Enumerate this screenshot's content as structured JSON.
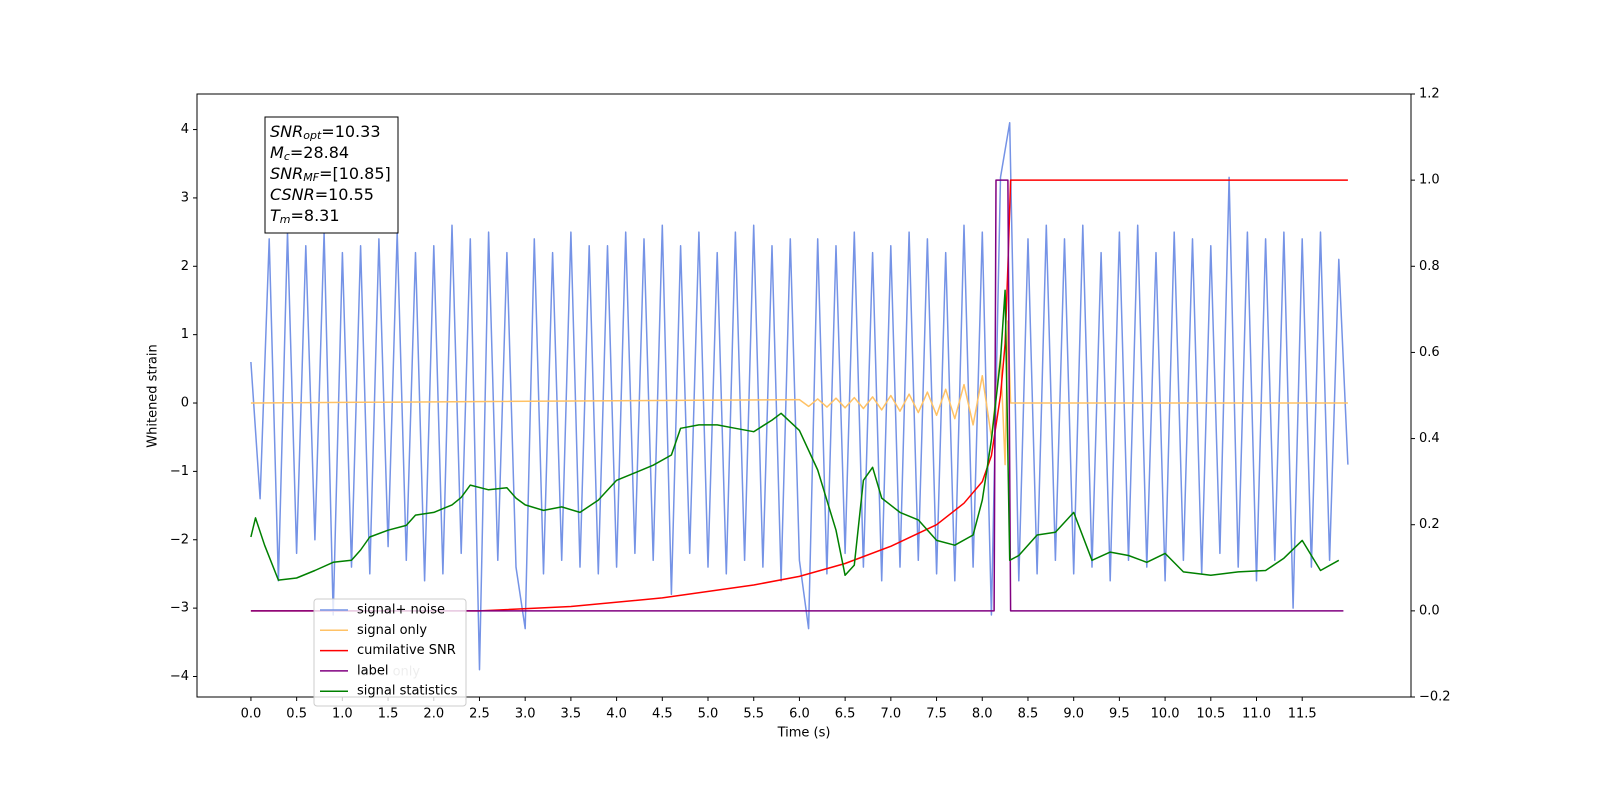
{
  "chart_data": {
    "type": "line",
    "xlabel": "Time (s)",
    "ylabel": "Whitened strain",
    "xlim": [
      -0.59,
      12.69
    ],
    "ylim": [
      -4.3,
      4.52
    ],
    "y2lim": [
      -0.2,
      1.2
    ],
    "xticks": [
      {
        "value": 0,
        "label": "0.0"
      },
      {
        "value": 0.5,
        "label": "0.5"
      },
      {
        "value": 1,
        "label": "1.0"
      },
      {
        "value": 1.5,
        "label": "1.5"
      },
      {
        "value": 2,
        "label": "2.0"
      },
      {
        "value": 2.5,
        "label": "2.5"
      },
      {
        "value": 3,
        "label": "3.0"
      },
      {
        "value": 3.5,
        "label": "3.5"
      },
      {
        "value": 4,
        "label": "4.0"
      },
      {
        "value": 4.5,
        "label": "4.5"
      },
      {
        "value": 5,
        "label": "5.0"
      },
      {
        "value": 5.5,
        "label": "5.5"
      },
      {
        "value": 6,
        "label": "6.0"
      },
      {
        "value": 6.5,
        "label": "6.5"
      },
      {
        "value": 7,
        "label": "7.0"
      },
      {
        "value": 7.5,
        "label": "7.5"
      },
      {
        "value": 8,
        "label": "8.0"
      },
      {
        "value": 8.5,
        "label": "8.5"
      },
      {
        "value": 9,
        "label": "9.0"
      },
      {
        "value": 9.5,
        "label": "9.5"
      },
      {
        "value": 10,
        "label": "10.0"
      },
      {
        "value": 10.5,
        "label": "10.5"
      },
      {
        "value": 11,
        "label": "11.0"
      },
      {
        "value": 11.5,
        "label": "11.5"
      }
    ],
    "yticks": [
      {
        "value": -4,
        "label": "−4"
      },
      {
        "value": -3,
        "label": "−3"
      },
      {
        "value": -2,
        "label": "−2"
      },
      {
        "value": -1,
        "label": "−1"
      },
      0,
      1,
      2,
      3,
      4
    ],
    "y2ticks": [
      {
        "value": -0.2,
        "label": "−0.2"
      },
      {
        "value": 0,
        "label": "0.0"
      },
      0.2,
      0.4,
      0.6,
      0.8,
      {
        "value": 1,
        "label": "1.0"
      },
      1.2
    ],
    "annotation": [
      {
        "name": "SNR",
        "sub": "opt",
        "text": "=10.33"
      },
      {
        "name": "M",
        "sub": "c",
        "text": "=28.84"
      },
      {
        "name": "SNR",
        "sub": "MF",
        "text": "=[10.85]"
      },
      {
        "name": "CSNR",
        "text": "=10.55"
      },
      {
        "name": "T",
        "sub": "m",
        "text": "=8.31"
      }
    ],
    "legend_overlay": "label only",
    "series": [
      {
        "name": "signal+ noise",
        "color": "#7593e6",
        "x": [
          0.0,
          0.1,
          0.2,
          0.3,
          0.4,
          0.5,
          0.6,
          0.7,
          0.8,
          0.9,
          1.0,
          1.1,
          1.2,
          1.3,
          1.4,
          1.5,
          1.6,
          1.7,
          1.8,
          1.9,
          2.0,
          2.1,
          2.2,
          2.3,
          2.4,
          2.5,
          2.6,
          2.7,
          2.8,
          2.9,
          3.0,
          3.1,
          3.2,
          3.3,
          3.4,
          3.5,
          3.6,
          3.7,
          3.8,
          3.9,
          4.0,
          4.1,
          4.2,
          4.3,
          4.4,
          4.5,
          4.6,
          4.7,
          4.8,
          4.9,
          5.0,
          5.1,
          5.2,
          5.3,
          5.4,
          5.5,
          5.6,
          5.7,
          5.8,
          5.9,
          6.0,
          6.1,
          6.2,
          6.3,
          6.4,
          6.5,
          6.6,
          6.7,
          6.8,
          6.9,
          7.0,
          7.1,
          7.2,
          7.3,
          7.4,
          7.5,
          7.6,
          7.7,
          7.8,
          7.9,
          8.0,
          8.1,
          8.2,
          8.3,
          8.4,
          8.5,
          8.6,
          8.7,
          8.8,
          8.9,
          9.0,
          9.1,
          9.2,
          9.3,
          9.4,
          9.5,
          9.6,
          9.7,
          9.8,
          9.9,
          10.0,
          10.1,
          10.2,
          10.3,
          10.4,
          10.5,
          10.6,
          10.7,
          10.8,
          10.9,
          11.0,
          11.1,
          11.2,
          11.3,
          11.4,
          11.5,
          11.6,
          11.7,
          11.8,
          11.9,
          12.0
        ],
        "values": [
          0.6,
          -1.4,
          2.4,
          -2.6,
          2.5,
          -2.2,
          2.3,
          -2.0,
          2.5,
          -3.1,
          2.2,
          -2.4,
          2.3,
          -2.5,
          2.4,
          -2.1,
          2.5,
          -2.3,
          2.2,
          -2.6,
          2.3,
          -2.5,
          2.6,
          -2.2,
          2.4,
          -3.9,
          2.5,
          -2.3,
          2.2,
          -2.4,
          -3.3,
          2.4,
          -2.5,
          2.2,
          -2.3,
          2.5,
          -2.4,
          2.3,
          -2.5,
          2.3,
          -2.4,
          2.5,
          -2.2,
          2.4,
          -2.3,
          2.6,
          -2.8,
          2.3,
          -2.2,
          2.5,
          -2.4,
          2.2,
          -2.5,
          2.5,
          -2.3,
          2.6,
          -2.4,
          2.3,
          -2.6,
          2.4,
          -2.3,
          -3.3,
          2.4,
          -2.5,
          2.3,
          -2.2,
          2.5,
          -2.4,
          2.2,
          -2.6,
          2.3,
          -2.4,
          2.5,
          -2.3,
          2.4,
          -2.5,
          2.2,
          -2.6,
          2.6,
          -2.4,
          2.5,
          -3.1,
          3.3,
          4.1,
          -2.6,
          2.4,
          -2.5,
          2.6,
          -2.3,
          2.4,
          -2.5,
          2.6,
          -2.4,
          2.2,
          -2.6,
          2.5,
          -2.3,
          2.6,
          -2.4,
          2.2,
          -2.6,
          2.5,
          -2.3,
          2.4,
          -2.5,
          2.3,
          -2.2,
          3.3,
          -2.4,
          2.5,
          -2.6,
          2.4,
          -2.3,
          2.5,
          -3.0,
          2.4,
          -2.4,
          2.5,
          -2.3,
          2.1,
          -0.9
        ]
      },
      {
        "name": "signal only",
        "color": "#ffc266",
        "x": [
          0.0,
          6.0,
          6.1,
          6.2,
          6.3,
          6.4,
          6.5,
          6.6,
          6.7,
          6.8,
          6.9,
          7.0,
          7.1,
          7.2,
          7.3,
          7.4,
          7.5,
          7.6,
          7.7,
          7.8,
          7.9,
          8.0,
          8.1,
          8.2,
          8.25,
          8.28,
          8.31,
          12.0
        ],
        "values": [
          0,
          0.05,
          -0.05,
          0.06,
          -0.06,
          0.07,
          -0.07,
          0.08,
          -0.08,
          0.09,
          -0.1,
          0.11,
          -0.12,
          0.13,
          -0.14,
          0.16,
          -0.18,
          0.2,
          -0.23,
          0.27,
          -0.32,
          0.4,
          -0.5,
          0.7,
          -0.9,
          1.2,
          0,
          0
        ]
      },
      {
        "name": "cumilative SNR",
        "color": "#ff0000",
        "axis": "y2",
        "x": [
          0,
          2.5,
          3.5,
          4.5,
          5.5,
          6.0,
          6.5,
          7.0,
          7.5,
          7.8,
          8.0,
          8.1,
          8.2,
          8.25,
          8.28,
          8.31,
          12.0
        ],
        "values": [
          0,
          0,
          0.01,
          0.03,
          0.06,
          0.08,
          0.11,
          0.15,
          0.2,
          0.25,
          0.3,
          0.36,
          0.5,
          0.62,
          0.8,
          1.0,
          1.0
        ]
      },
      {
        "name": "label",
        "color": "#800080",
        "axis": "y2",
        "x": [
          0,
          8.13,
          8.15,
          8.28,
          8.31,
          11.95
        ],
        "values": [
          0,
          0,
          1,
          1,
          0,
          0
        ]
      },
      {
        "name": "signal statistics",
        "color": "#008000",
        "x": [
          0.0,
          0.05,
          0.15,
          0.3,
          0.5,
          0.7,
          0.9,
          1.1,
          1.2,
          1.3,
          1.5,
          1.7,
          1.8,
          2.0,
          2.2,
          2.3,
          2.4,
          2.6,
          2.8,
          2.9,
          3.0,
          3.2,
          3.4,
          3.6,
          3.8,
          4.0,
          4.2,
          4.4,
          4.6,
          4.7,
          4.9,
          5.1,
          5.3,
          5.5,
          5.7,
          5.8,
          6.0,
          6.2,
          6.4,
          6.5,
          6.6,
          6.7,
          6.8,
          6.9,
          7.1,
          7.3,
          7.5,
          7.7,
          7.9,
          8.0,
          8.1,
          8.2,
          8.25,
          8.3,
          8.4,
          8.6,
          8.8,
          9.0,
          9.2,
          9.4,
          9.6,
          9.8,
          10.0,
          10.2,
          10.5,
          10.8,
          11.1,
          11.3,
          11.5,
          11.7,
          11.9
        ],
        "values": [
          -1.96,
          -1.68,
          -2.08,
          -2.59,
          -2.56,
          -2.45,
          -2.33,
          -2.3,
          -2.15,
          -1.96,
          -1.86,
          -1.79,
          -1.64,
          -1.6,
          -1.49,
          -1.38,
          -1.2,
          -1.27,
          -1.24,
          -1.39,
          -1.49,
          -1.57,
          -1.52,
          -1.6,
          -1.42,
          -1.13,
          -1.02,
          -0.91,
          -0.76,
          -0.37,
          -0.32,
          -0.32,
          -0.37,
          -0.42,
          -0.25,
          -0.15,
          -0.4,
          -0.98,
          -1.86,
          -2.52,
          -2.37,
          -1.13,
          -0.94,
          -1.39,
          -1.6,
          -1.71,
          -2.01,
          -2.08,
          -1.93,
          -1.42,
          -0.54,
          0.63,
          1.65,
          -2.3,
          -2.23,
          -1.93,
          -1.89,
          -1.6,
          -2.3,
          -2.18,
          -2.23,
          -2.33,
          -2.2,
          -2.47,
          -2.52,
          -2.47,
          -2.45,
          -2.27,
          -2.01,
          -2.45,
          -2.3
        ]
      }
    ]
  }
}
